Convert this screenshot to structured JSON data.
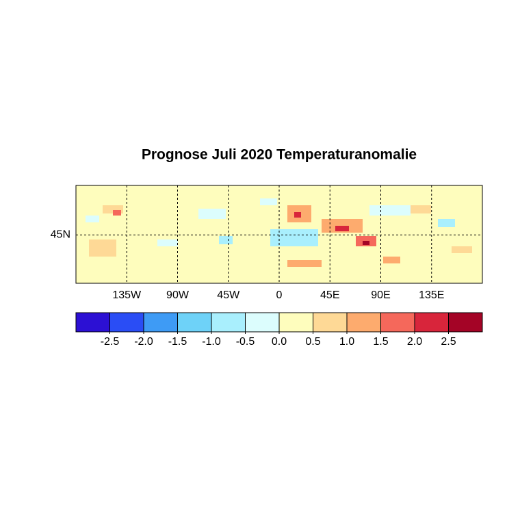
{
  "chart_data": {
    "type": "map",
    "title": "Prognose Juli 2020 Temperaturanomalie",
    "xlim": [
      -180,
      180
    ],
    "ylim": [
      2,
      89
    ],
    "xticks": [
      {
        "value": -135,
        "label": "135W"
      },
      {
        "value": -90,
        "label": "90W"
      },
      {
        "value": -45,
        "label": "45W"
      },
      0,
      {
        "value": 45,
        "label": "45E"
      },
      {
        "value": 90,
        "label": "90E"
      },
      {
        "value": 135,
        "label": "135E"
      }
    ],
    "yticks": [
      {
        "value": 45,
        "label": "45N"
      }
    ],
    "grid": true,
    "colorbar": {
      "colors": [
        "#2c10d4",
        "#2a4df5",
        "#3e9bf5",
        "#6ed2f8",
        "#a9effd",
        "#dcfdfd",
        "#fefdbd",
        "#fed996",
        "#fdab6e",
        "#f5685b",
        "#d8253b",
        "#a40426"
      ],
      "levels": [
        -2.5,
        {
          "value": -2,
          "label": "-2.0"
        },
        -1.5,
        {
          "value": -1,
          "label": "-1.0"
        },
        -0.5,
        {
          "value": 0,
          "label": "0.0"
        },
        0.5,
        {
          "value": 1,
          "label": "1.0"
        },
        1.5,
        {
          "value": 2,
          "label": "2.0"
        },
        2.5
      ]
    }
  }
}
